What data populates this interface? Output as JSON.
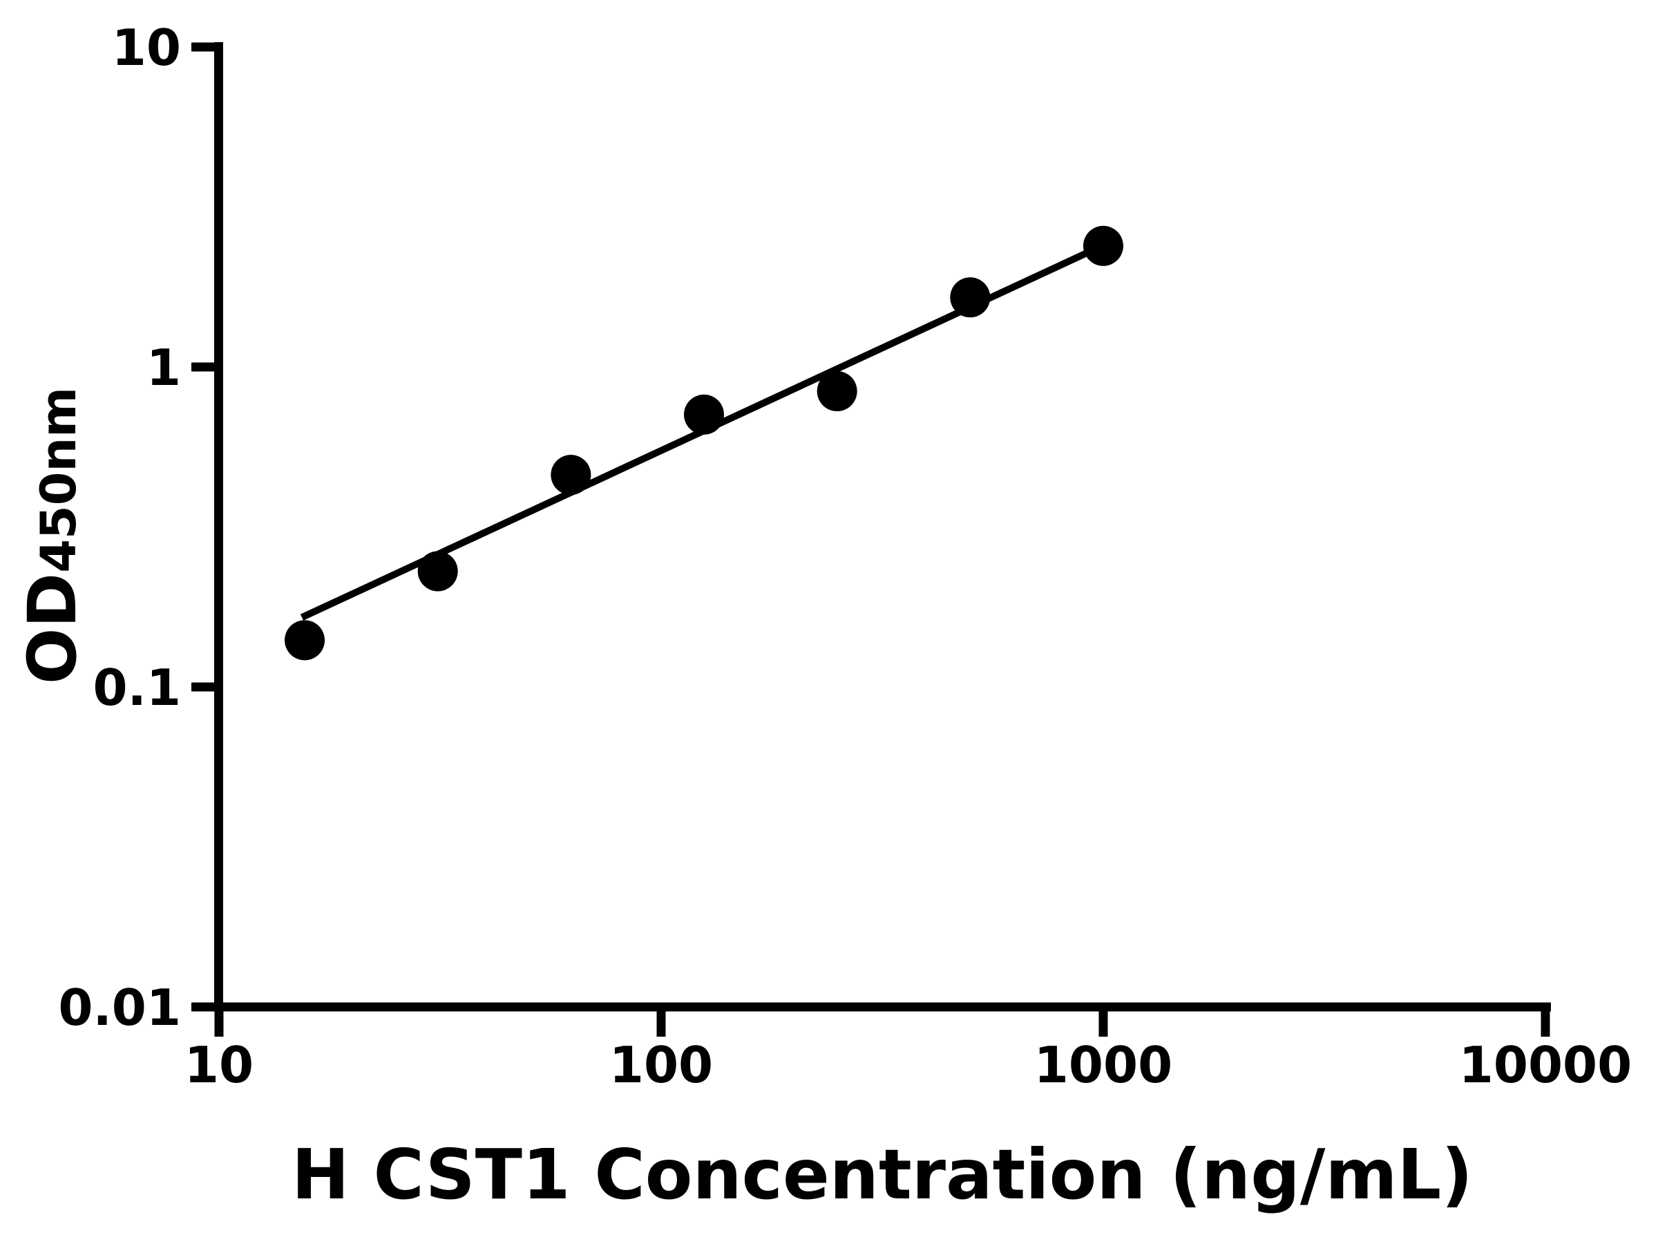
{
  "figure": {
    "background": "#ffffff",
    "foreground": "#000000"
  },
  "chart_data": {
    "type": "scatter",
    "title": "",
    "xlabel": "H CST1 Concentration (ng/mL)",
    "ylabel": "OD450nm",
    "ylabel_main": "OD",
    "ylabel_sub": "450nm",
    "xscale": "log",
    "yscale": "log",
    "xlim": [
      10,
      10000
    ],
    "ylim": [
      0.01,
      10
    ],
    "grid": false,
    "legend": false,
    "x_ticks": [
      {
        "value": 10,
        "label": "10"
      },
      {
        "value": 100,
        "label": "100"
      },
      {
        "value": 1000,
        "label": "1000"
      },
      {
        "value": 10000,
        "label": "10000"
      }
    ],
    "y_ticks": [
      {
        "value": 10,
        "label": "10"
      },
      {
        "value": 1,
        "label": "1"
      },
      {
        "value": 0.1,
        "label": "0.1"
      },
      {
        "value": 0.01,
        "label": "0.01"
      }
    ],
    "points": [
      {
        "x": 15.625,
        "y": 0.14
      },
      {
        "x": 31.25,
        "y": 0.23
      },
      {
        "x": 62.5,
        "y": 0.46
      },
      {
        "x": 125,
        "y": 0.71
      },
      {
        "x": 250,
        "y": 0.84
      },
      {
        "x": 500,
        "y": 1.65
      },
      {
        "x": 1000,
        "y": 2.39
      }
    ],
    "fit_line": {
      "x1": 15.4,
      "y1": 0.165,
      "x2": 1000,
      "y2": 2.4
    },
    "marker_color": "#000000",
    "line_color": "#000000"
  }
}
